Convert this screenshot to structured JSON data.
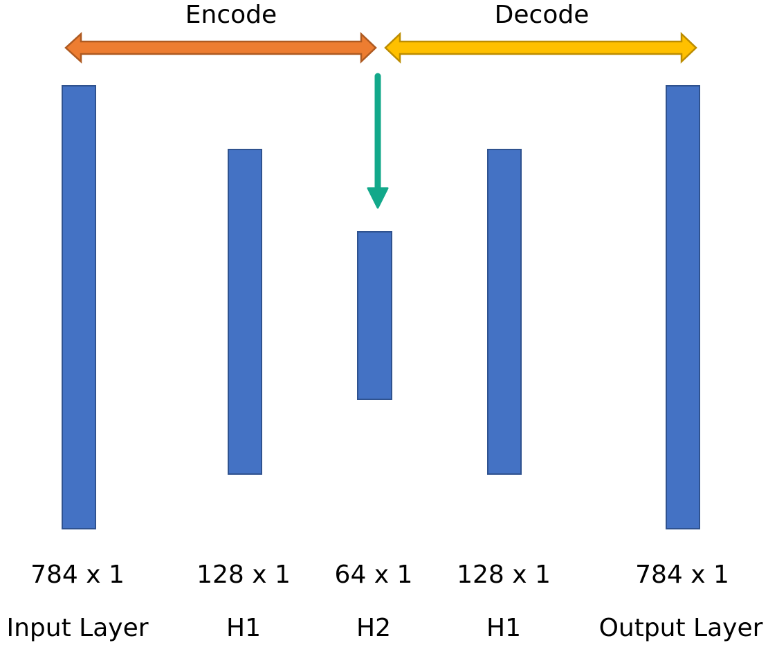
{
  "encode_label": "Encode",
  "decode_label": "Decode",
  "colors": {
    "layer_fill": "#4472c4",
    "layer_stroke": "#2f528f",
    "encode_arrow": "#ed7d31",
    "encode_arrow_stroke": "#ae5a21",
    "decode_arrow": "#ffc000",
    "decode_arrow_stroke": "#bc8c00",
    "bottleneck_arrow": "#12a88a"
  },
  "layers": [
    {
      "size": "784 x 1",
      "name": "Input Layer"
    },
    {
      "size": "128 x 1",
      "name": "H1"
    },
    {
      "size": "64 x 1",
      "name": "H2"
    },
    {
      "size": "128 x 1",
      "name": "H1"
    },
    {
      "size": "784 x 1",
      "name": "Output Layer"
    }
  ]
}
